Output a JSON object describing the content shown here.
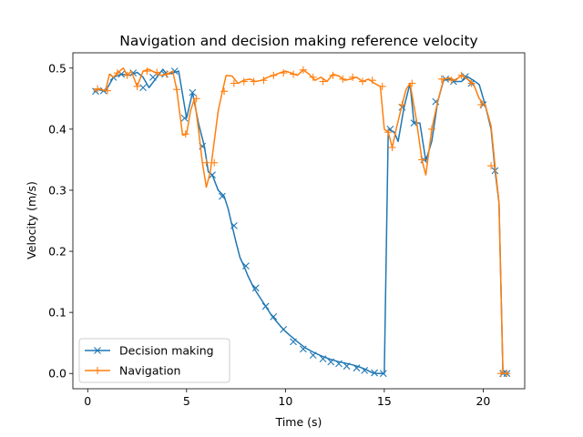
{
  "chart_data": {
    "type": "line",
    "title": "Navigation and decision making reference velocity",
    "xlabel": "Time (s)",
    "ylabel": "Velocity (m/s)",
    "xlim": [
      -0.75,
      22.1
    ],
    "ylim": [
      -0.025,
      0.525
    ],
    "xticks": [
      0,
      5,
      10,
      15,
      20
    ],
    "xtick_labels": [
      "0",
      "5",
      "10",
      "15",
      "20"
    ],
    "yticks": [
      0.0,
      0.1,
      0.2,
      0.3,
      0.4,
      0.5
    ],
    "ytick_labels": [
      "0.0",
      "0.1",
      "0.2",
      "0.3",
      "0.4",
      "0.5"
    ],
    "grid": false,
    "legend": {
      "placement": "lower-left"
    },
    "series": [
      {
        "name": "Decision making",
        "color": "#1f77b4",
        "marker": "x",
        "x": [
          0.3,
          0.5,
          0.9,
          1.3,
          1.7,
          2.1,
          2.5,
          2.8,
          3.1,
          3.5,
          3.8,
          4.0,
          4.3,
          4.6,
          5.0,
          5.3,
          5.6,
          5.9,
          6.1,
          6.3,
          6.6,
          6.9,
          7.1,
          7.3,
          7.5,
          7.7,
          7.9,
          8.1,
          8.4,
          8.7,
          9.0,
          9.3,
          9.6,
          9.9,
          10.2,
          10.6,
          11.0,
          11.4,
          11.8,
          12.2,
          12.6,
          13.0,
          13.4,
          13.8,
          14.1,
          14.4,
          14.7,
          14.9,
          15.0,
          15.2,
          15.5,
          15.7,
          16.0,
          16.3,
          16.5,
          16.8,
          17.1,
          17.4,
          17.7,
          18.0,
          18.3,
          18.6,
          18.9,
          19.2,
          19.5,
          19.8,
          20.1,
          20.4,
          20.6,
          20.8,
          20.9,
          21.0,
          21.2
        ],
        "y": [
          0.462,
          0.465,
          0.462,
          0.485,
          0.49,
          0.488,
          0.493,
          0.485,
          0.468,
          0.485,
          0.498,
          0.49,
          0.492,
          0.495,
          0.418,
          0.46,
          0.41,
          0.372,
          0.33,
          0.325,
          0.3,
          0.29,
          0.27,
          0.242,
          0.215,
          0.19,
          0.176,
          0.16,
          0.14,
          0.125,
          0.11,
          0.095,
          0.083,
          0.072,
          0.063,
          0.052,
          0.042,
          0.035,
          0.029,
          0.024,
          0.02,
          0.017,
          0.014,
          0.01,
          0.006,
          0.001,
          0.0,
          0.0,
          0.0,
          0.4,
          0.395,
          0.38,
          0.436,
          0.475,
          0.41,
          0.41,
          0.348,
          0.38,
          0.445,
          0.48,
          0.482,
          0.478,
          0.478,
          0.486,
          0.48,
          0.473,
          0.44,
          0.4,
          0.332,
          0.28,
          0.14,
          0.0,
          0.0
        ],
        "marker_x": [
          0.4,
          0.8,
          1.3,
          1.7,
          2.3,
          2.8,
          3.3,
          3.9,
          4.4,
          4.9,
          5.3,
          5.8,
          6.3,
          6.8,
          7.4,
          8.0,
          8.5,
          9.0,
          9.4,
          9.9,
          10.4,
          10.9,
          11.4,
          11.9,
          12.3,
          12.7,
          13.1,
          13.6,
          14.0,
          14.5,
          14.95,
          15.3,
          15.9,
          16.5,
          17.0,
          17.6,
          18.1,
          18.5,
          19.1,
          19.4,
          20.0,
          20.6,
          21.0,
          21.2
        ],
        "marker_y": [
          0.462,
          0.463,
          0.485,
          0.49,
          0.492,
          0.468,
          0.485,
          0.49,
          0.495,
          0.418,
          0.46,
          0.372,
          0.325,
          0.29,
          0.242,
          0.176,
          0.14,
          0.11,
          0.093,
          0.072,
          0.052,
          0.04,
          0.03,
          0.024,
          0.019,
          0.016,
          0.012,
          0.009,
          0.005,
          0.001,
          0.0,
          0.4,
          0.436,
          0.41,
          0.35,
          0.445,
          0.482,
          0.478,
          0.486,
          0.475,
          0.44,
          0.332,
          0.0,
          0.0
        ]
      },
      {
        "name": "Navigation",
        "color": "#ff7f0e",
        "marker": "+",
        "x": [
          0.3,
          0.5,
          0.9,
          1.1,
          1.3,
          1.5,
          1.8,
          2.0,
          2.2,
          2.5,
          2.8,
          3.1,
          3.4,
          3.7,
          4.0,
          4.3,
          4.5,
          4.8,
          5.0,
          5.2,
          5.4,
          5.6,
          5.8,
          6.0,
          6.2,
          6.4,
          6.6,
          6.8,
          7.0,
          7.3,
          7.6,
          7.9,
          8.2,
          8.5,
          8.8,
          9.1,
          9.4,
          9.7,
          10.0,
          10.3,
          10.6,
          10.9,
          11.2,
          11.5,
          11.8,
          12.1,
          12.4,
          12.7,
          13.0,
          13.3,
          13.6,
          13.9,
          14.2,
          14.5,
          14.8,
          15.0,
          15.2,
          15.4,
          15.6,
          15.9,
          16.1,
          16.3,
          16.6,
          16.9,
          17.1,
          17.4,
          17.7,
          18.0,
          18.3,
          18.6,
          18.9,
          19.2,
          19.5,
          19.8,
          20.1,
          20.4,
          20.6,
          20.8,
          20.9,
          21.0,
          21.2
        ],
        "y": [
          0.462,
          0.466,
          0.463,
          0.49,
          0.485,
          0.492,
          0.5,
          0.488,
          0.495,
          0.47,
          0.495,
          0.498,
          0.493,
          0.488,
          0.49,
          0.495,
          0.465,
          0.39,
          0.392,
          0.43,
          0.45,
          0.4,
          0.345,
          0.305,
          0.33,
          0.38,
          0.43,
          0.46,
          0.488,
          0.487,
          0.475,
          0.48,
          0.482,
          0.478,
          0.48,
          0.485,
          0.488,
          0.492,
          0.495,
          0.492,
          0.488,
          0.497,
          0.49,
          0.48,
          0.485,
          0.478,
          0.49,
          0.487,
          0.48,
          0.482,
          0.485,
          0.478,
          0.482,
          0.475,
          0.47,
          0.4,
          0.395,
          0.37,
          0.4,
          0.44,
          0.465,
          0.475,
          0.42,
          0.35,
          0.325,
          0.4,
          0.445,
          0.482,
          0.484,
          0.48,
          0.488,
          0.482,
          0.475,
          0.45,
          0.44,
          0.405,
          0.34,
          0.28,
          0.14,
          0.0,
          0.0
        ],
        "marker_x": [
          0.5,
          1.0,
          1.5,
          2.0,
          2.5,
          3.0,
          3.5,
          4.0,
          4.5,
          4.95,
          5.5,
          6.0,
          6.4,
          6.9,
          7.4,
          7.9,
          8.4,
          8.9,
          9.4,
          9.9,
          10.4,
          10.9,
          11.4,
          11.9,
          12.4,
          12.9,
          13.4,
          13.9,
          14.4,
          14.9,
          15.2,
          15.4,
          15.9,
          16.4,
          16.9,
          17.4,
          17.9,
          18.4,
          18.9,
          19.4,
          19.9,
          20.4,
          20.9,
          21.2
        ],
        "marker_y": [
          0.466,
          0.463,
          0.492,
          0.488,
          0.47,
          0.495,
          0.493,
          0.49,
          0.465,
          0.392,
          0.45,
          0.345,
          0.345,
          0.462,
          0.475,
          0.478,
          0.478,
          0.48,
          0.488,
          0.492,
          0.49,
          0.497,
          0.485,
          0.478,
          0.488,
          0.482,
          0.485,
          0.478,
          0.48,
          0.47,
          0.395,
          0.37,
          0.44,
          0.475,
          0.35,
          0.4,
          0.482,
          0.48,
          0.488,
          0.475,
          0.44,
          0.34,
          0.0,
          0.0
        ]
      }
    ]
  }
}
